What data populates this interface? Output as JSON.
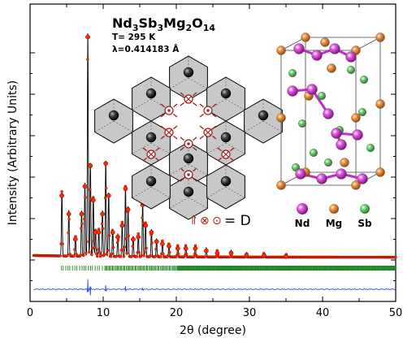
{
  "chart_data": {
    "type": "scatter",
    "title": "Nd3Sb3Mg2O14",
    "title_parts": [
      {
        "text": "Nd",
        "sub": false
      },
      {
        "text": "3",
        "sub": true
      },
      {
        "text": "Sb",
        "sub": false
      },
      {
        "text": "3",
        "sub": true
      },
      {
        "text": "Mg",
        "sub": false
      },
      {
        "text": "2",
        "sub": true
      },
      {
        "text": "O",
        "sub": false
      },
      {
        "text": "14",
        "sub": true
      }
    ],
    "annotations": [
      "T= 295 K",
      "λ=0.414183 Å"
    ],
    "xlabel": "2θ (degree)",
    "ylabel": "Intensity (Arbitrary Units)",
    "xlim": [
      0,
      50
    ],
    "xticks": [
      0,
      10,
      20,
      30,
      40,
      50
    ],
    "grid": false,
    "series": [
      {
        "kind": "observed",
        "color": "#ff2a00",
        "peaks": [
          [
            4.35,
            0.28
          ],
          [
            5.3,
            0.2
          ],
          [
            6.2,
            0.09
          ],
          [
            7.05,
            0.2
          ],
          [
            7.5,
            0.32
          ],
          [
            7.9,
            0.97
          ],
          [
            8.25,
            0.41
          ],
          [
            8.65,
            0.26
          ],
          [
            8.95,
            0.12
          ],
          [
            9.4,
            0.12
          ],
          [
            9.9,
            0.2
          ],
          [
            10.35,
            0.42
          ],
          [
            10.75,
            0.28
          ],
          [
            11.3,
            0.12
          ],
          [
            12.0,
            0.1
          ],
          [
            12.6,
            0.15
          ],
          [
            13.05,
            0.31
          ],
          [
            13.4,
            0.22
          ],
          [
            14.1,
            0.09
          ],
          [
            14.8,
            0.1
          ],
          [
            15.4,
            0.24
          ],
          [
            15.8,
            0.15
          ],
          [
            16.6,
            0.12
          ],
          [
            17.3,
            0.08
          ],
          [
            18.1,
            0.07
          ],
          [
            19.0,
            0.06
          ],
          [
            20.2,
            0.05
          ],
          [
            21.3,
            0.05
          ],
          [
            22.6,
            0.05
          ],
          [
            24.1,
            0.04
          ],
          [
            25.6,
            0.03
          ],
          [
            27.5,
            0.03
          ],
          [
            29.6,
            0.02
          ],
          [
            32.0,
            0.02
          ],
          [
            35.0,
            0.015
          ]
        ]
      },
      {
        "kind": "calculated",
        "color": "#000000"
      },
      {
        "kind": "bragg-ticks",
        "color": "#1f8a1f",
        "x_start": 4.3,
        "x_end": 50.0
      },
      {
        "kind": "difference",
        "color": "#3355ee",
        "spikes": [
          [
            7.9,
            0.045
          ],
          [
            8.25,
            -0.03
          ],
          [
            10.35,
            0.02
          ],
          [
            13.05,
            0.015
          ],
          [
            15.4,
            0.01
          ]
        ]
      }
    ]
  },
  "inset_pattern": {
    "legend_label": "= D",
    "legend_symbols": [
      "⇑",
      "⊗",
      "⊙"
    ]
  },
  "structure_legend": [
    {
      "label": "Nd",
      "color": "#d635d6"
    },
    {
      "label": "Mg",
      "color": "#e07a28"
    },
    {
      "label": "Sb",
      "color": "#5fc25f"
    }
  ]
}
